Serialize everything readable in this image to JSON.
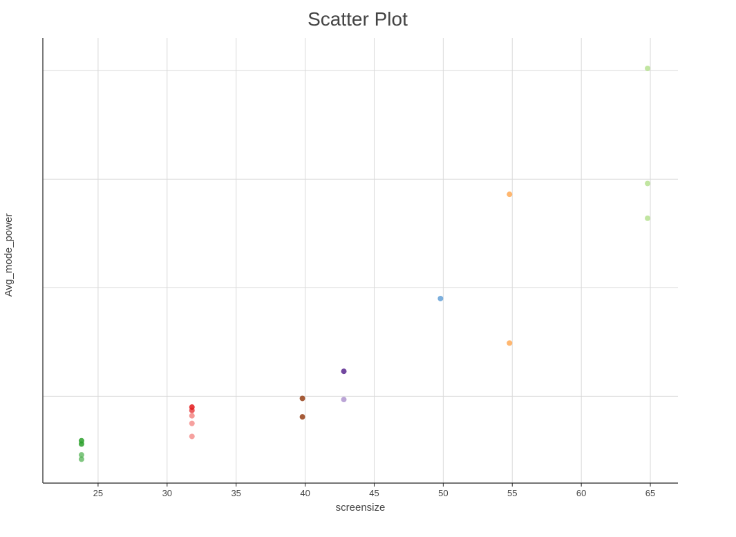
{
  "chart_data": {
    "type": "scatter",
    "title": "Scatter Plot",
    "xlabel": "screensize",
    "ylabel": "Avg_mode_power",
    "xlim": [
      21,
      67
    ],
    "ylim": [
      -0.3,
      3.8
    ],
    "x_ticks": [
      25,
      30,
      35,
      40,
      45,
      50,
      55,
      60,
      65
    ],
    "y_gridlines": [
      0.5,
      1.5,
      2.5,
      3.5
    ],
    "grid": true,
    "legend": "none",
    "points": [
      {
        "x": 23.8,
        "y": 0.09,
        "color": "#2ca02c",
        "opacity": 0.85
      },
      {
        "x": 23.8,
        "y": 0.06,
        "color": "#2ca02c",
        "opacity": 0.85
      },
      {
        "x": 23.8,
        "y": -0.04,
        "color": "#2ca02c",
        "opacity": 0.6
      },
      {
        "x": 23.8,
        "y": -0.08,
        "color": "#2ca02c",
        "opacity": 0.6
      },
      {
        "x": 31.8,
        "y": 0.4,
        "color": "#e31a1c",
        "opacity": 0.85
      },
      {
        "x": 31.8,
        "y": 0.37,
        "color": "#e31a1c",
        "opacity": 0.7
      },
      {
        "x": 31.8,
        "y": 0.32,
        "color": "#ef5350",
        "opacity": 0.6
      },
      {
        "x": 31.8,
        "y": 0.25,
        "color": "#ef5350",
        "opacity": 0.55
      },
      {
        "x": 31.8,
        "y": 0.13,
        "color": "#ef5350",
        "opacity": 0.55
      },
      {
        "x": 39.8,
        "y": 0.48,
        "color": "#a0522d",
        "opacity": 0.95
      },
      {
        "x": 39.8,
        "y": 0.31,
        "color": "#a0522d",
        "opacity": 0.95
      },
      {
        "x": 42.8,
        "y": 0.73,
        "color": "#6a3d9a",
        "opacity": 0.95
      },
      {
        "x": 42.8,
        "y": 0.47,
        "color": "#9e7fc4",
        "opacity": 0.7
      },
      {
        "x": 49.8,
        "y": 1.4,
        "color": "#5b9bd5",
        "opacity": 0.8
      },
      {
        "x": 54.8,
        "y": 2.36,
        "color": "#ff9f40",
        "opacity": 0.75
      },
      {
        "x": 54.8,
        "y": 0.99,
        "color": "#ff9f40",
        "opacity": 0.75
      },
      {
        "x": 64.8,
        "y": 3.52,
        "color": "#b2df8a",
        "opacity": 0.8
      },
      {
        "x": 64.8,
        "y": 2.46,
        "color": "#b2df8a",
        "opacity": 0.8
      },
      {
        "x": 64.8,
        "y": 2.14,
        "color": "#b2df8a",
        "opacity": 0.8
      }
    ]
  }
}
